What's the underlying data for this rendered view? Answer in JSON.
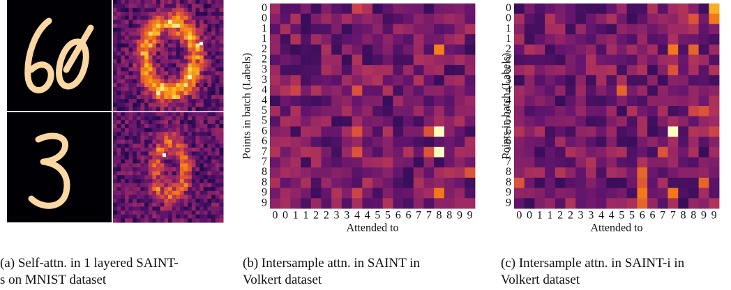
{
  "panels": [
    {
      "caption": [
        "(a) Self-attn. in 1 layered SAINT-",
        "s on MNIST dataset"
      ]
    },
    {
      "y_label": "Points in batch (Labels)",
      "x_label": "Attended to",
      "row_labels": [
        "0",
        "0",
        "1",
        "1",
        "2",
        "2",
        "3",
        "3",
        "4",
        "4",
        "5",
        "5",
        "6",
        "6",
        "7",
        "7",
        "8",
        "8",
        "9",
        "9"
      ],
      "col_labels": [
        "0",
        "0",
        "1",
        "1",
        "2",
        "2",
        "3",
        "3",
        "4",
        "4",
        "5",
        "5",
        "6",
        "6",
        "7",
        "7",
        "8",
        "8",
        "9",
        "9"
      ],
      "caption": [
        "(b) Intersample attn. in SAINT in",
        "Volkert dataset"
      ]
    },
    {
      "y_label": "Points in batch (Labels)",
      "x_label": "Attended to",
      "row_labels": [
        "0",
        "0",
        "1",
        "1",
        "2",
        "2",
        "3",
        "3",
        "4",
        "4",
        "5",
        "5",
        "6",
        "6",
        "7",
        "7",
        "8",
        "8",
        "9",
        "9"
      ],
      "col_labels": [
        "0",
        "0",
        "1",
        "1",
        "2",
        "2",
        "3",
        "3",
        "4",
        "4",
        "5",
        "5",
        "6",
        "6",
        "7",
        "7",
        "8",
        "8",
        "9",
        "9"
      ],
      "caption": [
        "(c) Intersample attn. in SAINT-i in",
        "Volkert dataset"
      ]
    }
  ]
}
